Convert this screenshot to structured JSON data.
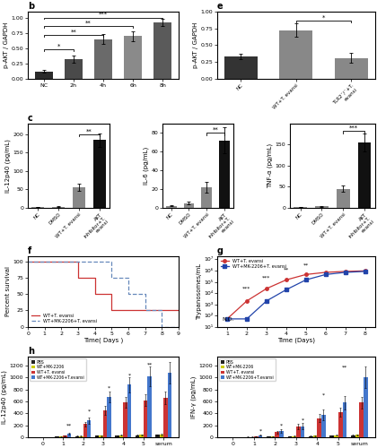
{
  "chart_data": [
    {
      "type": "bar",
      "title": "b",
      "categories": [
        "NC",
        "2h",
        "4h",
        "6h",
        "8h"
      ],
      "values": [
        0.12,
        0.32,
        0.65,
        0.7,
        0.92
      ],
      "errors": [
        0.02,
        0.06,
        0.08,
        0.08,
        0.06
      ],
      "colors": [
        "#2a2a2a",
        "#4a4a4a",
        "#6a6a6a",
        "#8a8a8a",
        "#5a5a5a"
      ],
      "y_label": "p-AKT / GAPDH",
      "ylim": [
        0,
        1.1
      ],
      "yticks": [
        {
          "value": 0,
          "label": "0.00"
        },
        {
          "value": 0.25,
          "label": "0.25"
        },
        {
          "value": 0.5,
          "label": "0.50"
        },
        {
          "value": 0.75,
          "label": "0.75"
        },
        {
          "value": 1.0,
          "label": "1.00"
        }
      ],
      "annotations": [
        {
          "from": "NC",
          "to": "2h",
          "y": 0.48,
          "text": "*"
        },
        {
          "from": "NC",
          "to": "4h",
          "y": 0.72,
          "text": "**"
        },
        {
          "from": "NC",
          "to": "6h",
          "y": 0.86,
          "text": "**"
        },
        {
          "from": "NC",
          "to": "8h",
          "y": 1.0,
          "text": "***"
        }
      ]
    },
    {
      "type": "bar",
      "title": "c",
      "categories": [
        "NC",
        "DMSO",
        "WT+T. evansi",
        "AKT inhibitor+T. evansi"
      ],
      "values": [
        2,
        3,
        55,
        185
      ],
      "errors": [
        0.5,
        1,
        10,
        18
      ],
      "colors": [
        "#888888",
        "#888888",
        "#888888",
        "#111111"
      ],
      "y_label": "IL-12p40 (pg/mL)",
      "ylim": [
        0,
        230
      ],
      "yticks": [
        0,
        50,
        100,
        150,
        200
      ],
      "annotations": [
        {
          "from": "WT+T. evansi",
          "to": "AKT inhibitor+T. evansi",
          "y": 200,
          "text": "**"
        }
      ]
    },
    {
      "type": "bar",
      "categories": [
        "NC",
        "DMSO",
        "WT+T. evansi",
        "AKT inhibitor+T. evansi"
      ],
      "values": [
        2,
        5,
        22,
        72
      ],
      "errors": [
        0.5,
        1.5,
        6,
        14
      ],
      "colors": [
        "#888888",
        "#888888",
        "#888888",
        "#111111"
      ],
      "y_label": "IL-6 (pg/mL)",
      "ylim": [
        0,
        90
      ],
      "yticks": [
        0,
        20,
        40,
        60,
        80
      ],
      "annotations": [
        {
          "from": "WT+T. evansi",
          "to": "AKT inhibitor+T. evansi",
          "y": 80,
          "text": "**"
        }
      ]
    },
    {
      "type": "bar",
      "categories": [
        "NC",
        "DMSO",
        "WT+T. evansi",
        "AKT inhibitor+T. evansi"
      ],
      "values": [
        2,
        3,
        45,
        155
      ],
      "errors": [
        0.5,
        1,
        8,
        22
      ],
      "colors": [
        "#888888",
        "#888888",
        "#888888",
        "#111111"
      ],
      "y_label": "TNF-α (pg/mL)",
      "ylim": [
        0,
        200
      ],
      "yticks": [
        0,
        50,
        100,
        150
      ],
      "annotations": [
        {
          "from": "WT+T. evansi",
          "to": "AKT inhibitor+T. evansi",
          "y": 182,
          "text": "***"
        }
      ]
    },
    {
      "type": "bar",
      "title": "e",
      "categories": [
        "NC",
        "WT+T. evansi",
        "TLR2⁻/⁻+T. evansi"
      ],
      "values": [
        0.33,
        0.72,
        0.31
      ],
      "errors": [
        0.04,
        0.1,
        0.07
      ],
      "colors": [
        "#333333",
        "#888888",
        "#888888"
      ],
      "y_label": "p-AKT / GAPDH",
      "ylim": [
        0,
        1.0
      ],
      "yticks": [
        {
          "value": 0.0,
          "label": "0.00"
        },
        {
          "value": 0.25,
          "label": "0.25"
        },
        {
          "value": 0.5,
          "label": "0.50"
        },
        {
          "value": 0.75,
          "label": "0.75"
        },
        {
          "value": 1.0,
          "label": "1.00"
        }
      ],
      "annotations": [
        {
          "from": "WT+T. evansi",
          "to": "TLR2⁻/⁻+T. evansi",
          "y": 0.86,
          "text": "*"
        }
      ]
    },
    {
      "type": "line",
      "title": "f",
      "series": [
        {
          "name": "WT+T. evansi",
          "color": "#cc3333",
          "line_style": "solid",
          "x": [
            0,
            3,
            3,
            4,
            4,
            5,
            5,
            6,
            6,
            9
          ],
          "values": [
            100,
            100,
            75,
            75,
            50,
            50,
            25,
            25,
            25,
            25
          ]
        },
        {
          "name": "WT+MK-2206+T. evansi",
          "color": "#6688bb",
          "line_style": "dashed",
          "x": [
            0,
            5,
            5,
            6,
            6,
            7,
            7,
            8,
            8,
            9
          ],
          "values": [
            100,
            100,
            75,
            75,
            50,
            50,
            25,
            25,
            0,
            0
          ]
        }
      ],
      "x_label": "Time( Days )",
      "y_label": "Percent survival",
      "xlim": [
        0,
        9
      ],
      "ylim": [
        0,
        108
      ],
      "xticks": [
        0,
        1,
        2,
        3,
        4,
        5,
        6,
        7,
        8,
        9
      ],
      "yticks": [
        0,
        25,
        50,
        75,
        100
      ],
      "legend": "lower left"
    },
    {
      "type": "line",
      "title": "g",
      "log": "y",
      "series": [
        {
          "name": "WT+T. evansi",
          "color": "#cc3333",
          "marker": "circle",
          "line_style": "solid",
          "x": [
            1,
            2,
            3,
            4,
            5,
            6,
            7,
            8
          ],
          "values": [
            50,
            2000,
            25000,
            150000,
            450000,
            700000,
            850000,
            950000
          ]
        },
        {
          "name": "WT+MK-2206+T. ​evansi",
          "color": "#2244aa",
          "marker": "square",
          "line_style": "solid",
          "x": [
            1,
            2,
            3,
            4,
            5,
            6,
            7,
            8
          ],
          "values": [
            50,
            50,
            2000,
            20000,
            150000,
            450000,
            700000,
            850000
          ]
        }
      ],
      "x_label": "Time (Days)",
      "y_label": "Trypanosomes/mL",
      "xlim": [
        0.5,
        8.5
      ],
      "ylim": [
        10,
        20000000.0
      ],
      "xticks": [
        1,
        2,
        3,
        4,
        5,
        6,
        7,
        8
      ],
      "yticks": [
        {
          "value": 10,
          "label": "10¹"
        },
        {
          "value": 100,
          "label": "10²"
        },
        {
          "value": 1000,
          "label": "10³"
        },
        {
          "value": 10000,
          "label": "10⁴"
        },
        {
          "value": 100000,
          "label": "10⁵"
        },
        {
          "value": 1000000,
          "label": "10⁶"
        },
        {
          "value": 10000000,
          "label": "10⁷"
        }
      ],
      "legend": "upper left",
      "annotations": [
        {
          "x": 1.05,
          "y": 28,
          "text": "N.D."
        },
        {
          "x": 2.0,
          "y": 15000.0,
          "text": "***"
        },
        {
          "x": 3.0,
          "y": 150000.0,
          "text": "***"
        },
        {
          "x": 4.0,
          "y": 800000.0,
          "text": "**"
        },
        {
          "x": 5.0,
          "y": 2000000.0,
          "text": "**"
        }
      ]
    },
    {
      "type": "bar",
      "title": "h",
      "categories": [
        "0",
        "1",
        "2",
        "3",
        "4",
        "5",
        "serum"
      ],
      "series": [
        {
          "name": "PBS",
          "color": "#222222",
          "values": [
            0,
            10,
            20,
            25,
            30,
            35,
            40
          ],
          "errors": [
            0,
            3,
            5,
            6,
            7,
            8,
            10
          ]
        },
        {
          "name": "WT+MK-2206",
          "color": "#cccc00",
          "values": [
            0,
            12,
            22,
            28,
            35,
            40,
            45
          ],
          "errors": [
            0,
            3,
            5,
            6,
            8,
            9,
            11
          ]
        },
        {
          "name": "WT+T. evansi",
          "color": "#cc3333",
          "values": [
            0,
            25,
            220,
            450,
            580,
            620,
            660
          ],
          "errors": [
            0,
            8,
            40,
            70,
            90,
            100,
            110
          ]
        },
        {
          "name": "WT+MK-2206+T.evansi",
          "color": "#4477cc",
          "values": [
            0,
            65,
            280,
            680,
            880,
            1020,
            1080
          ],
          "errors": [
            0,
            15,
            55,
            90,
            130,
            160,
            180
          ]
        }
      ],
      "y_label": "IL-12p40 (pg/mL)",
      "ylim": [
        0,
        1350
      ],
      "yticks": [
        0,
        200,
        400,
        600,
        800,
        1000,
        1200
      ],
      "legend": "upper left",
      "annotations": [
        {
          "category": "1",
          "y": 160,
          "text": "**"
        },
        {
          "category": "2",
          "y": 400,
          "text": "*"
        },
        {
          "category": "3",
          "y": 780,
          "text": "*"
        },
        {
          "category": "4",
          "y": 1000,
          "text": "*"
        },
        {
          "category": "5",
          "y": 1170,
          "text": "**"
        }
      ]
    },
    {
      "type": "bar",
      "categories": [
        "0",
        "1",
        "2",
        "3",
        "4",
        "5",
        "serum"
      ],
      "series": [
        {
          "name": "PBS",
          "color": "#222222",
          "values": [
            0,
            8,
            12,
            18,
            22,
            28,
            32
          ],
          "errors": [
            0,
            2,
            4,
            5,
            6,
            7,
            8
          ]
        },
        {
          "name": "WT+MK-2206",
          "color": "#cccc00",
          "values": [
            0,
            9,
            14,
            20,
            28,
            35,
            42
          ],
          "errors": [
            0,
            2,
            4,
            5,
            7,
            8,
            10
          ]
        },
        {
          "name": "WT+T. evansi",
          "color": "#cc3333",
          "values": [
            0,
            18,
            90,
            180,
            320,
            420,
            580
          ],
          "errors": [
            0,
            6,
            22,
            45,
            65,
            80,
            100
          ]
        },
        {
          "name": "WT+MK-2206+T.evansi",
          "color": "#4477cc",
          "values": [
            0,
            35,
            110,
            185,
            380,
            580,
            1000
          ],
          "errors": [
            0,
            10,
            28,
            55,
            90,
            110,
            180
          ]
        }
      ],
      "y_label": "IFN-γ (pg/mL)",
      "ylim": [
        0,
        1350
      ],
      "yticks": [
        0,
        200,
        400,
        600,
        800,
        1000,
        1200
      ],
      "legend": "upper left",
      "annotations": [
        {
          "category": "1",
          "y": 75,
          "text": "*"
        },
        {
          "category": "2",
          "y": 155,
          "text": "*"
        },
        {
          "category": "3",
          "y": 250,
          "text": "*"
        },
        {
          "category": "4",
          "y": 660,
          "text": "*"
        },
        {
          "category": "5",
          "y": 1130,
          "text": "**"
        }
      ]
    }
  ]
}
